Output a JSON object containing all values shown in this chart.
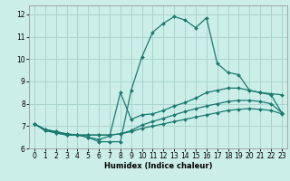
{
  "title": "",
  "xlabel": "Humidex (Indice chaleur)",
  "bg_color": "#cceee8",
  "grid_color": "#aad4ce",
  "line_color": "#1a7a6e",
  "xlim": [
    -0.5,
    23.5
  ],
  "ylim": [
    6,
    12.4
  ],
  "yticks": [
    6,
    7,
    8,
    9,
    10,
    11,
    12
  ],
  "xticks": [
    0,
    1,
    2,
    3,
    4,
    5,
    6,
    7,
    8,
    9,
    10,
    11,
    12,
    13,
    14,
    15,
    16,
    17,
    18,
    19,
    20,
    21,
    22,
    23
  ],
  "line1": {
    "x": [
      0,
      1,
      2,
      3,
      4,
      5,
      6,
      7,
      8,
      9,
      10,
      11,
      12,
      13,
      14,
      15,
      16,
      17,
      18,
      19,
      20,
      21,
      22,
      23
    ],
    "y": [
      7.1,
      6.8,
      6.7,
      6.6,
      6.6,
      6.5,
      6.3,
      6.3,
      6.3,
      8.6,
      10.1,
      11.2,
      11.6,
      11.9,
      11.75,
      11.4,
      11.85,
      9.8,
      9.4,
      9.3,
      8.6,
      8.5,
      8.4,
      7.6
    ]
  },
  "line2": {
    "x": [
      0,
      1,
      2,
      3,
      4,
      5,
      6,
      7,
      8,
      9,
      10,
      11,
      12,
      13,
      14,
      15,
      16,
      17,
      18,
      19,
      20,
      21,
      22,
      23
    ],
    "y": [
      7.1,
      6.8,
      6.7,
      6.6,
      6.6,
      6.5,
      6.4,
      6.55,
      8.5,
      7.3,
      7.5,
      7.55,
      7.7,
      7.9,
      8.05,
      8.25,
      8.5,
      8.6,
      8.7,
      8.7,
      8.6,
      8.5,
      8.45,
      8.4
    ]
  },
  "line3": {
    "x": [
      0,
      1,
      2,
      3,
      4,
      5,
      6,
      7,
      8,
      9,
      10,
      11,
      12,
      13,
      14,
      15,
      16,
      17,
      18,
      19,
      20,
      21,
      22,
      23
    ],
    "y": [
      7.1,
      6.85,
      6.75,
      6.65,
      6.6,
      6.6,
      6.6,
      6.6,
      6.65,
      6.8,
      7.05,
      7.2,
      7.35,
      7.5,
      7.65,
      7.78,
      7.9,
      8.0,
      8.1,
      8.15,
      8.15,
      8.1,
      8.0,
      7.6
    ]
  },
  "line4": {
    "x": [
      0,
      1,
      2,
      3,
      4,
      5,
      6,
      7,
      8,
      9,
      10,
      11,
      12,
      13,
      14,
      15,
      16,
      17,
      18,
      19,
      20,
      21,
      22,
      23
    ],
    "y": [
      7.1,
      6.85,
      6.75,
      6.65,
      6.6,
      6.6,
      6.6,
      6.6,
      6.65,
      6.75,
      6.9,
      7.0,
      7.1,
      7.2,
      7.3,
      7.4,
      7.5,
      7.6,
      7.7,
      7.75,
      7.78,
      7.75,
      7.7,
      7.55
    ]
  }
}
